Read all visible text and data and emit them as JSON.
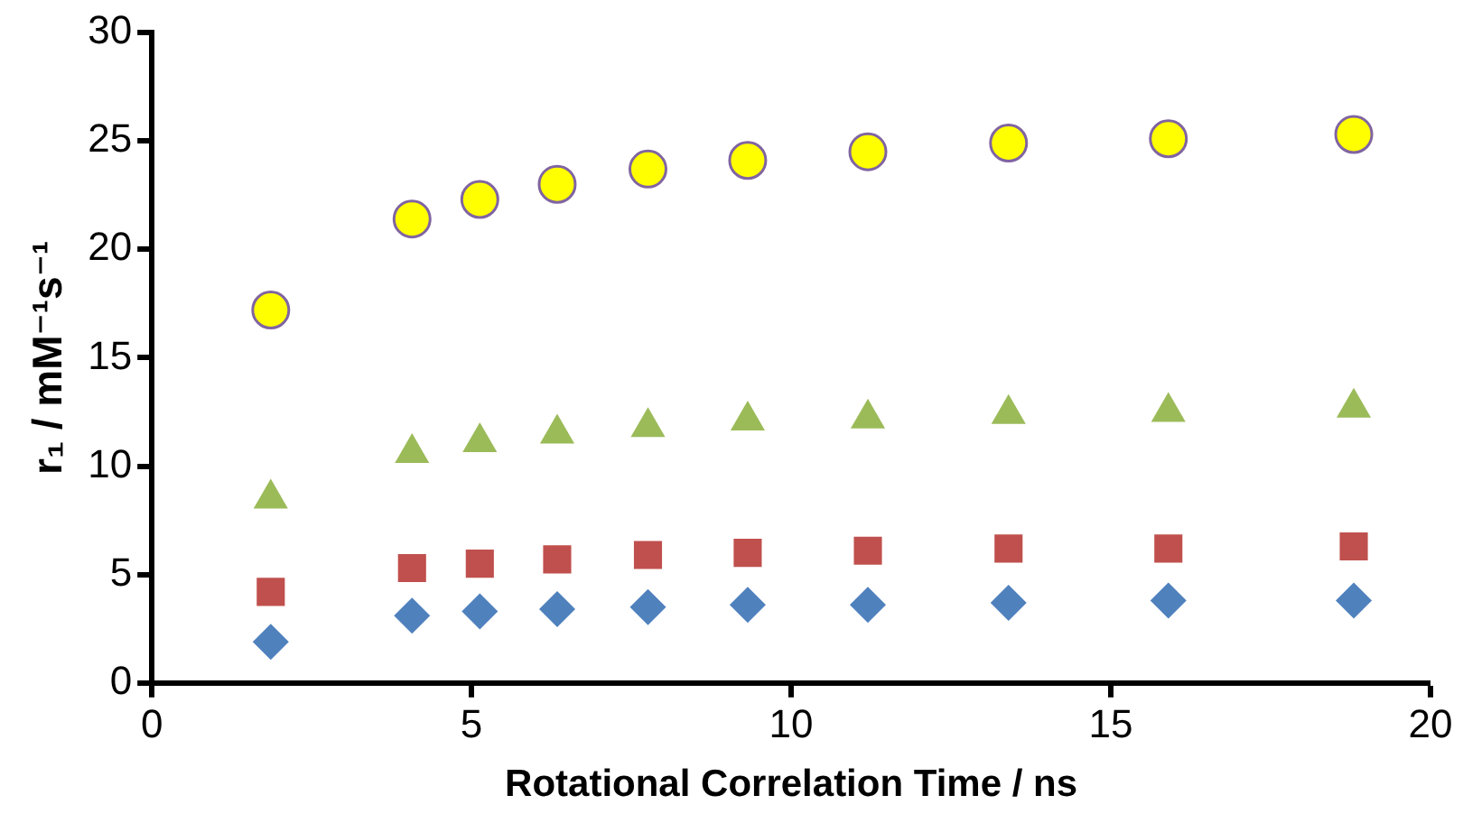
{
  "chart_data": {
    "type": "scatter",
    "xlabel": "Rotational Correlation Time / ns",
    "ylabel": "r₁ / mM⁻¹s⁻¹",
    "x": [
      1.86,
      4.07,
      5.13,
      6.34,
      7.76,
      9.32,
      11.2,
      13.4,
      15.9,
      18.8
    ],
    "xlim": [
      0,
      20
    ],
    "xticks": [
      0,
      5,
      10,
      15,
      20
    ],
    "ylim": [
      0,
      30
    ],
    "yticks": [
      0,
      5,
      10,
      15,
      20,
      25,
      30
    ],
    "grid": false,
    "legend": false,
    "series": [
      {
        "color": "#4f81bd",
        "marker": "diamond",
        "values": [
          1.9,
          3.1,
          3.3,
          3.4,
          3.5,
          3.6,
          3.6,
          3.7,
          3.8,
          3.8
        ]
      },
      {
        "color": "#c0504d",
        "marker": "square",
        "values": [
          4.2,
          5.3,
          5.5,
          5.7,
          5.9,
          6.0,
          6.1,
          6.2,
          6.2,
          6.3
        ]
      },
      {
        "color": "#9bbb59",
        "marker": "triangle",
        "values": [
          8.5,
          10.6,
          11.1,
          11.5,
          11.8,
          12.1,
          12.2,
          12.4,
          12.5,
          12.7
        ]
      },
      {
        "color": "#ffff00",
        "marker": "circle",
        "values": [
          17.2,
          21.4,
          22.3,
          23.0,
          23.7,
          24.1,
          24.5,
          24.9,
          25.1,
          25.3
        ]
      }
    ]
  }
}
